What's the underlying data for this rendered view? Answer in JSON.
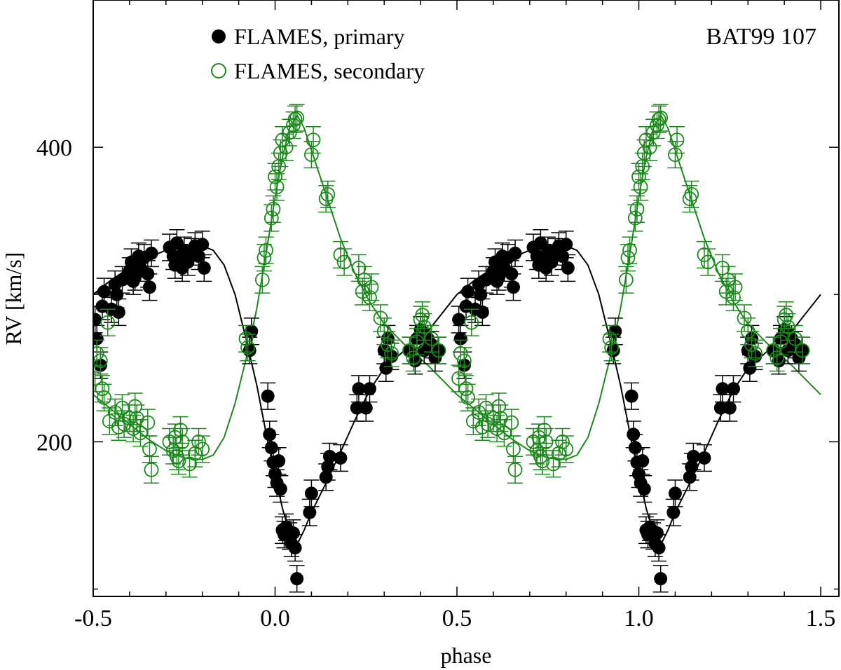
{
  "chart_data": {
    "type": "scatter",
    "title": "",
    "annotation": "BAT99 107",
    "xlabel": "phase",
    "ylabel": "RV [km/s]",
    "xlim": [
      -0.5,
      1.55
    ],
    "ylim": [
      95,
      500
    ],
    "x_ticks": [
      -0.5,
      0.0,
      0.5,
      1.0,
      1.5
    ],
    "x_tick_labels": [
      "-0.5",
      "0.0",
      "0.5",
      "1.0",
      "1.5"
    ],
    "x_minor_step": 0.1,
    "y_ticks": [
      200,
      400
    ],
    "y_tick_labels": [
      "200",
      "400"
    ],
    "y_minor_step": 100,
    "grid": false,
    "legend_position": "top-left",
    "colors": {
      "primary": "#000000",
      "secondary": "#1a8a1a"
    },
    "series": [
      {
        "name": "FLAMES, primary",
        "marker": "filled-circle",
        "color": "#000000",
        "error": 9,
        "points": [
          [
            -0.495,
            283
          ],
          [
            -0.49,
            270
          ],
          [
            -0.48,
            252
          ],
          [
            -0.475,
            292
          ],
          [
            -0.47,
            302
          ],
          [
            -0.45,
            290
          ],
          [
            -0.44,
            307
          ],
          [
            -0.435,
            300
          ],
          [
            -0.43,
            288
          ],
          [
            -0.42,
            310
          ],
          [
            -0.4,
            316
          ],
          [
            -0.395,
            322
          ],
          [
            -0.39,
            309
          ],
          [
            -0.385,
            312
          ],
          [
            -0.375,
            326
          ],
          [
            -0.37,
            318
          ],
          [
            -0.36,
            325
          ],
          [
            -0.35,
            314
          ],
          [
            -0.345,
            305
          ],
          [
            -0.34,
            328
          ],
          [
            -0.29,
            332
          ],
          [
            -0.28,
            326
          ],
          [
            -0.275,
            320
          ],
          [
            -0.27,
            335
          ],
          [
            -0.26,
            325
          ],
          [
            -0.255,
            318
          ],
          [
            -0.25,
            330
          ],
          [
            -0.24,
            322
          ],
          [
            -0.23,
            329
          ],
          [
            -0.22,
            333
          ],
          [
            -0.21,
            326
          ],
          [
            -0.2,
            334
          ],
          [
            -0.195,
            318
          ],
          [
            -0.07,
            262
          ],
          [
            -0.065,
            275
          ],
          [
            -0.02,
            231
          ],
          [
            -0.015,
            205
          ],
          [
            -0.01,
            196
          ],
          [
            -0.005,
            186
          ],
          [
            0.0,
            178
          ],
          [
            0.005,
            172
          ],
          [
            0.01,
            187
          ],
          [
            0.015,
            168
          ],
          [
            0.02,
            140
          ],
          [
            0.025,
            137
          ],
          [
            0.03,
            142
          ],
          [
            0.04,
            136
          ],
          [
            0.045,
            131
          ],
          [
            0.05,
            138
          ],
          [
            0.055,
            128
          ],
          [
            0.06,
            107
          ],
          [
            0.095,
            152
          ],
          [
            0.1,
            165
          ],
          [
            0.14,
            176
          ],
          [
            0.145,
            183
          ],
          [
            0.15,
            190
          ],
          [
            0.18,
            189
          ],
          [
            0.225,
            223
          ],
          [
            0.23,
            236
          ],
          [
            0.25,
            223
          ],
          [
            0.26,
            236
          ],
          [
            0.3,
            262
          ],
          [
            0.305,
            250
          ],
          [
            0.31,
            270
          ],
          [
            0.32,
            258
          ],
          [
            0.37,
            262
          ],
          [
            0.385,
            255
          ],
          [
            0.39,
            270
          ],
          [
            0.4,
            276
          ],
          [
            0.41,
            262
          ],
          [
            0.42,
            270
          ],
          [
            0.43,
            266
          ],
          [
            0.44,
            257
          ],
          [
            0.45,
            262
          ]
        ]
      },
      {
        "name": "FLAMES, secondary",
        "marker": "open-circle",
        "color": "#1a8a1a",
        "error": 9,
        "points": [
          [
            -0.495,
            243
          ],
          [
            -0.49,
            260
          ],
          [
            -0.48,
            255
          ],
          [
            -0.475,
            236
          ],
          [
            -0.47,
            230
          ],
          [
            -0.46,
            281
          ],
          [
            -0.455,
            214
          ],
          [
            -0.44,
            220
          ],
          [
            -0.43,
            210
          ],
          [
            -0.42,
            223
          ],
          [
            -0.415,
            212
          ],
          [
            -0.4,
            216
          ],
          [
            -0.39,
            209
          ],
          [
            -0.385,
            224
          ],
          [
            -0.38,
            216
          ],
          [
            -0.37,
            206
          ],
          [
            -0.35,
            213
          ],
          [
            -0.345,
            195
          ],
          [
            -0.34,
            181
          ],
          [
            -0.29,
            200
          ],
          [
            -0.28,
            194
          ],
          [
            -0.275,
            203
          ],
          [
            -0.27,
            190
          ],
          [
            -0.265,
            187
          ],
          [
            -0.26,
            208
          ],
          [
            -0.255,
            200
          ],
          [
            -0.235,
            185
          ],
          [
            -0.22,
            192
          ],
          [
            -0.21,
            200
          ],
          [
            -0.2,
            195
          ],
          [
            -0.08,
            270
          ],
          [
            -0.075,
            264
          ],
          [
            -0.035,
            310
          ],
          [
            -0.03,
            325
          ],
          [
            -0.025,
            330
          ],
          [
            -0.01,
            352
          ],
          [
            -0.005,
            358
          ],
          [
            0.0,
            380
          ],
          [
            0.005,
            373
          ],
          [
            0.01,
            387
          ],
          [
            0.015,
            396
          ],
          [
            0.02,
            405
          ],
          [
            0.03,
            400
          ],
          [
            0.04,
            410
          ],
          [
            0.05,
            415
          ],
          [
            0.055,
            419
          ],
          [
            0.06,
            420
          ],
          [
            0.1,
            395
          ],
          [
            0.105,
            405
          ],
          [
            0.14,
            365
          ],
          [
            0.145,
            368
          ],
          [
            0.18,
            327
          ],
          [
            0.19,
            322
          ],
          [
            0.23,
            318
          ],
          [
            0.24,
            302
          ],
          [
            0.245,
            310
          ],
          [
            0.26,
            298
          ],
          [
            0.265,
            305
          ],
          [
            0.29,
            284
          ],
          [
            0.3,
            275
          ],
          [
            0.31,
            266
          ],
          [
            0.32,
            260
          ],
          [
            0.37,
            262
          ],
          [
            0.38,
            257
          ],
          [
            0.39,
            268
          ],
          [
            0.4,
            283
          ],
          [
            0.405,
            286
          ],
          [
            0.41,
            278
          ],
          [
            0.43,
            270
          ],
          [
            0.45,
            262
          ]
        ]
      }
    ],
    "model_curves": [
      {
        "series": "FLAMES, primary",
        "color": "#000000",
        "points": [
          [
            -0.5,
            300
          ],
          [
            -0.45,
            310
          ],
          [
            -0.4,
            318
          ],
          [
            -0.35,
            325
          ],
          [
            -0.3,
            330
          ],
          [
            -0.25,
            333
          ],
          [
            -0.2,
            333
          ],
          [
            -0.17,
            330
          ],
          [
            -0.14,
            320
          ],
          [
            -0.11,
            300
          ],
          [
            -0.08,
            270
          ],
          [
            -0.05,
            238
          ],
          [
            -0.02,
            200
          ],
          [
            0.0,
            178
          ],
          [
            0.02,
            155
          ],
          [
            0.04,
            138
          ],
          [
            0.06,
            130
          ],
          [
            0.08,
            140
          ],
          [
            0.1,
            152
          ],
          [
            0.14,
            172
          ],
          [
            0.18,
            193
          ],
          [
            0.22,
            215
          ],
          [
            0.26,
            235
          ],
          [
            0.3,
            250
          ],
          [
            0.36,
            263
          ],
          [
            0.42,
            275
          ],
          [
            0.5,
            300
          ]
        ]
      },
      {
        "series": "FLAMES, secondary",
        "color": "#1a8a1a",
        "points": [
          [
            -0.5,
            232
          ],
          [
            -0.45,
            222
          ],
          [
            -0.4,
            212
          ],
          [
            -0.35,
            202
          ],
          [
            -0.3,
            194
          ],
          [
            -0.25,
            189
          ],
          [
            -0.2,
            188
          ],
          [
            -0.17,
            191
          ],
          [
            -0.14,
            203
          ],
          [
            -0.11,
            226
          ],
          [
            -0.08,
            256
          ],
          [
            -0.05,
            291
          ],
          [
            -0.02,
            335
          ],
          [
            0.0,
            366
          ],
          [
            0.02,
            393
          ],
          [
            0.04,
            413
          ],
          [
            0.06,
            422
          ],
          [
            0.08,
            413
          ],
          [
            0.1,
            398
          ],
          [
            0.14,
            368
          ],
          [
            0.18,
            338
          ],
          [
            0.22,
            314
          ],
          [
            0.26,
            295
          ],
          [
            0.3,
            280
          ],
          [
            0.36,
            265
          ],
          [
            0.42,
            252
          ],
          [
            0.5,
            232
          ]
        ]
      }
    ]
  }
}
